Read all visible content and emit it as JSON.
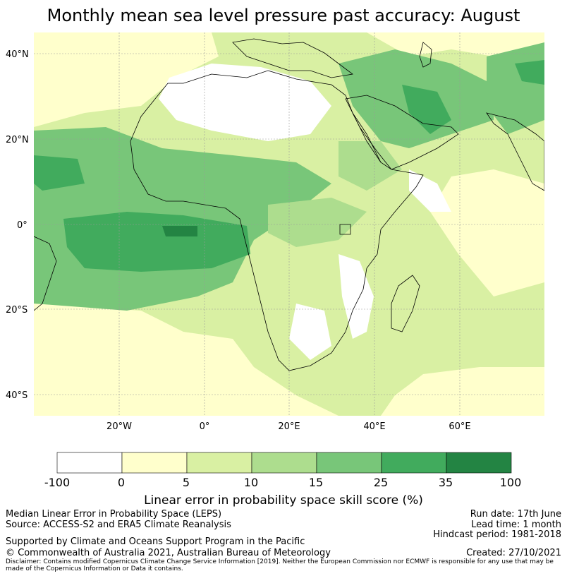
{
  "title": "Monthly mean sea level pressure past accuracy: August",
  "map": {
    "lat_labels": [
      "40°N",
      "20°N",
      "0°",
      "20°S",
      "40°S"
    ],
    "lon_labels": [
      "20°W",
      "0°",
      "20°E",
      "40°E",
      "60°E"
    ],
    "colors": {
      "c0": "#ffffff",
      "c1": "#ffffcc",
      "c2": "#d9f0a3",
      "c3": "#addd8e",
      "c4": "#78c679",
      "c5": "#41ab5d",
      "c6": "#238443",
      "land_outline": "#000000",
      "gridline": "#999999"
    }
  },
  "colorbar": {
    "ticks": [
      "-100",
      "0",
      "5",
      "10",
      "15",
      "25",
      "35",
      "100"
    ],
    "colors": [
      "#ffffff",
      "#ffffcc",
      "#d9f0a3",
      "#addd8e",
      "#78c679",
      "#41ab5d",
      "#238443"
    ],
    "title": "Linear error in probability space skill score (%)"
  },
  "footer": {
    "line1_left": "Median Linear Error in Probability Space (LEPS)",
    "line2_left": "Source: ACCESS-S2 and ERA5 Climate Reanalysis",
    "line3_left": "Supported by Climate and Oceans Support Program in the Pacific",
    "line4_left": "© Commonwealth of Australia 2021, Australian Bureau of Meteorology",
    "line1_right": "Run date: 17th June",
    "line2_right": "Lead time: 1 month",
    "line3_right": "Hindcast period: 1981-2018",
    "line4_right": "Created: 27/10/2021",
    "disclaimer": "Disclaimer: Contains modified Copernicus Climate Change Service Information [2019]. Neither the European Commission nor ECMWF is responsible for any use that may be made of the Copernicus Information or Data it contains."
  }
}
